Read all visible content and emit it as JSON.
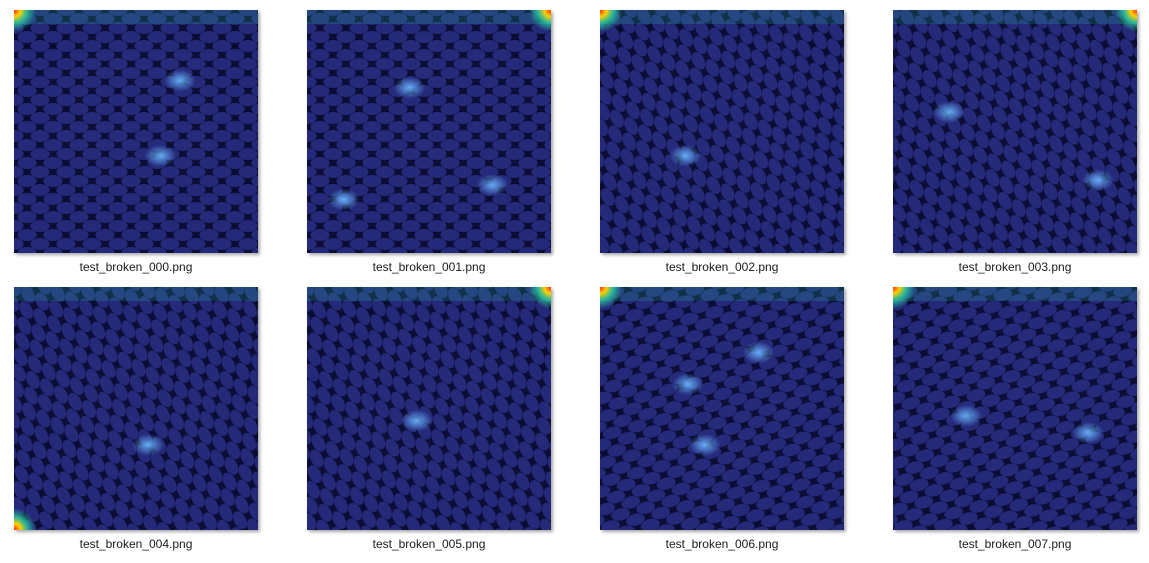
{
  "files": [
    {
      "name": "test_broken_000.png",
      "thumb_icon": "heatmap-overlay-image",
      "hot_corners": [
        "top-left"
      ],
      "mesh_angle": 0,
      "hotspots": [
        [
          0.68,
          0.29
        ],
        [
          0.6,
          0.6
        ]
      ]
    },
    {
      "name": "test_broken_001.png",
      "thumb_icon": "heatmap-overlay-image",
      "hot_corners": [
        "top-right"
      ],
      "mesh_angle": 0,
      "hotspots": [
        [
          0.42,
          0.32
        ],
        [
          0.15,
          0.78
        ],
        [
          0.76,
          0.72
        ]
      ]
    },
    {
      "name": "test_broken_002.png",
      "thumb_icon": "heatmap-overlay-image",
      "hot_corners": [
        "top-left"
      ],
      "mesh_angle": 62,
      "hotspots": [
        [
          0.35,
          0.6
        ]
      ]
    },
    {
      "name": "test_broken_003.png",
      "thumb_icon": "heatmap-overlay-image",
      "hot_corners": [
        "top-right"
      ],
      "mesh_angle": 62,
      "hotspots": [
        [
          0.23,
          0.42
        ],
        [
          0.84,
          0.7
        ]
      ]
    },
    {
      "name": "test_broken_004.png",
      "thumb_icon": "heatmap-overlay-image",
      "hot_corners": [
        "bottom-left"
      ],
      "mesh_angle": 62,
      "hotspots": [
        [
          0.55,
          0.65
        ]
      ]
    },
    {
      "name": "test_broken_005.png",
      "thumb_icon": "heatmap-overlay-image",
      "hot_corners": [
        "top-right"
      ],
      "mesh_angle": 62,
      "hotspots": [
        [
          0.45,
          0.55
        ]
      ]
    },
    {
      "name": "test_broken_006.png",
      "thumb_icon": "heatmap-overlay-image",
      "hot_corners": [
        "top-left"
      ],
      "mesh_angle": -15,
      "hotspots": [
        [
          0.65,
          0.27
        ],
        [
          0.36,
          0.4
        ],
        [
          0.43,
          0.65
        ]
      ]
    },
    {
      "name": "test_broken_007.png",
      "thumb_icon": "heatmap-overlay-image",
      "hot_corners": [
        "top-left"
      ],
      "mesh_angle": -15,
      "hotspots": [
        [
          0.3,
          0.53
        ],
        [
          0.8,
          0.6
        ]
      ]
    }
  ],
  "colors": {
    "background": "#ffffff",
    "thumb_base": "#10136a",
    "mesh_dark": "#0a0c2e",
    "cell_glow": "#3c45b8",
    "hotspot": "#6ab4ff",
    "corner_hot": "#ff2a00",
    "corner_warm": "#ffd000",
    "corner_cool": "#2bd2a4"
  }
}
